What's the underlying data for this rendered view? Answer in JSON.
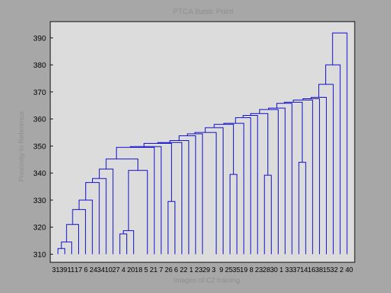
{
  "chart_data": {
    "type": "dendrogram",
    "title": "PTCA Basic Point",
    "xlabel": "Images of C2 training",
    "ylabel": "Proximity to Reference",
    "ylim": [
      307,
      396
    ],
    "yticks": [
      310,
      320,
      330,
      340,
      350,
      360,
      370,
      380,
      390
    ],
    "leaf_labels": [
      "31",
      "39",
      "11",
      "17",
      "6",
      "24",
      "34",
      "10",
      "27",
      "4",
      "20",
      "18",
      "5",
      "21",
      "7",
      "26",
      "6",
      "22",
      "1",
      "23",
      "29",
      "3",
      "9",
      "25",
      "35",
      "19",
      "8",
      "23",
      "28",
      "30",
      "1",
      "33",
      "37",
      "14",
      "16",
      "38",
      "15",
      "32",
      "2",
      "40"
    ],
    "nodes": [
      {
        "x": 1.5,
        "h": 312.1,
        "left": [
          1,
          310
        ],
        "right": [
          2,
          310
        ]
      },
      {
        "x": 2.25,
        "h": 314.5,
        "left": [
          1.5,
          312.1
        ],
        "right": [
          3,
          310
        ]
      },
      {
        "x": 3.125,
        "h": 321.0,
        "left": [
          2.25,
          314.5
        ],
        "right": [
          4,
          310
        ]
      },
      {
        "x": 4.0625,
        "h": 326.5,
        "left": [
          3.125,
          321.0
        ],
        "right": [
          5,
          310
        ]
      },
      {
        "x": 5.03,
        "h": 330.0,
        "left": [
          4.0625,
          326.5
        ],
        "right": [
          6,
          310
        ]
      },
      {
        "x": 6.02,
        "h": 336.5,
        "left": [
          5.03,
          330.0
        ],
        "right": [
          7,
          310
        ]
      },
      {
        "x": 7.01,
        "h": 338.0,
        "left": [
          6.02,
          336.5
        ],
        "right": [
          8,
          310
        ]
      },
      {
        "x": 8.0,
        "h": 341.5,
        "left": [
          7.01,
          338.0
        ],
        "right": [
          9,
          310
        ]
      },
      {
        "x": 10.5,
        "h": 317.5,
        "left": [
          10,
          310
        ],
        "right": [
          11,
          310
        ]
      },
      {
        "x": 11.25,
        "h": 318.7,
        "left": [
          10.5,
          317.5
        ],
        "right": [
          12,
          310
        ]
      },
      {
        "x": 12.625,
        "h": 341.0,
        "left": [
          11.25,
          318.7
        ],
        "right": [
          14,
          310
        ]
      },
      {
        "x": 9.5,
        "h": 345.2,
        "left": [
          8.0,
          341.5
        ],
        "right": [
          12.625,
          341.0
        ]
      },
      {
        "x": 11.5,
        "h": 349.5,
        "left": [
          9.5,
          345.2
        ],
        "right": [
          15,
          310
        ]
      },
      {
        "x": 17.5,
        "h": 329.5,
        "left": [
          17,
          310
        ],
        "right": [
          18,
          310
        ]
      },
      {
        "x": 13.5,
        "h": 349.8,
        "left": [
          11.5,
          349.5
        ],
        "right": [
          16,
          310
        ]
      },
      {
        "x": 15.5,
        "h": 351.0,
        "left": [
          13.5,
          349.8
        ],
        "right": [
          17.5,
          329.5
        ]
      },
      {
        "x": 17.25,
        "h": 351.3,
        "left": [
          15.5,
          351.0
        ],
        "right": [
          19,
          310
        ]
      },
      {
        "x": 18.6,
        "h": 352.0,
        "left": [
          17.25,
          351.3
        ],
        "right": [
          20,
          310
        ]
      },
      {
        "x": 19.8,
        "h": 353.8,
        "left": [
          18.6,
          352.0
        ],
        "right": [
          21,
          310
        ]
      },
      {
        "x": 20.9,
        "h": 354.5,
        "left": [
          19.8,
          353.8
        ],
        "right": [
          22,
          310
        ]
      },
      {
        "x": 22.4,
        "h": 355.0,
        "left": [
          20.9,
          354.5
        ],
        "right": [
          24,
          310
        ]
      },
      {
        "x": 23.7,
        "h": 356.8,
        "left": [
          22.4,
          355.0
        ],
        "right": [
          25,
          310
        ]
      },
      {
        "x": 26.5,
        "h": 339.5,
        "left": [
          26,
          310
        ],
        "right": [
          27,
          310
        ]
      },
      {
        "x": 25.1,
        "h": 358.0,
        "left": [
          23.7,
          356.8
        ],
        "right": [
          26.5,
          339.5
        ]
      },
      {
        "x": 26.8,
        "h": 358.4,
        "left": [
          25.1,
          358.0
        ],
        "right": [
          28,
          310
        ]
      },
      {
        "x": 27.9,
        "h": 360.5,
        "left": [
          26.8,
          358.4
        ],
        "right": [
          29,
          310
        ]
      },
      {
        "x": 31.5,
        "h": 339.2,
        "left": [
          31,
          310
        ],
        "right": [
          32,
          310
        ]
      },
      {
        "x": 29.0,
        "h": 361.3,
        "left": [
          27.9,
          360.5
        ],
        "right": [
          30,
          310
        ]
      },
      {
        "x": 30.3,
        "h": 362.0,
        "left": [
          29.0,
          361.3
        ],
        "right": [
          31.5,
          339.2
        ]
      },
      {
        "x": 31.6,
        "h": 363.5,
        "left": [
          30.3,
          362.0
        ],
        "right": [
          33,
          310
        ]
      },
      {
        "x": 32.8,
        "h": 364.0,
        "left": [
          31.6,
          363.5
        ],
        "right": [
          34,
          310
        ]
      },
      {
        "x": 36.5,
        "h": 344.0,
        "left": [
          36,
          310
        ],
        "right": [
          37,
          310
        ]
      },
      {
        "x": 33.9,
        "h": 365.8,
        "left": [
          32.8,
          364.0
        ],
        "right": [
          35,
          310
        ]
      },
      {
        "x": 35.2,
        "h": 366.2,
        "left": [
          33.9,
          365.8
        ],
        "right": [
          36.5,
          344.0
        ]
      },
      {
        "x": 36.6,
        "h": 367.0,
        "left": [
          35.2,
          366.2
        ],
        "right": [
          38,
          310
        ]
      },
      {
        "x": 37.8,
        "h": 367.5,
        "left": [
          36.6,
          367.0
        ],
        "right": [
          39,
          310
        ]
      },
      {
        "x": 38.9,
        "h": 368.0,
        "left": [
          37.8,
          367.5
        ],
        "right": [
          40,
          310
        ]
      },
      {
        "x": 39.9,
        "h": 372.8,
        "left": [
          38.9,
          368.0
        ],
        "right": [
          41,
          310
        ]
      },
      {
        "x": 40.9,
        "h": 380.0,
        "left": [
          39.9,
          372.8
        ],
        "right": [
          42,
          310
        ]
      },
      {
        "x": 41.9,
        "h": 391.8,
        "left": [
          40.9,
          380.0
        ],
        "right": [
          43,
          310
        ]
      }
    ],
    "grid": false,
    "background": "#dcdcdc",
    "line_color": "#0000cc"
  }
}
